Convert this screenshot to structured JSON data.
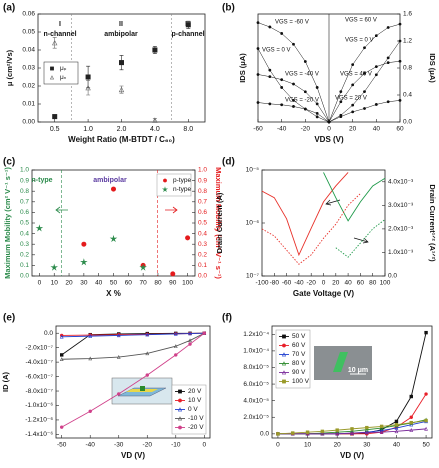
{
  "chart_data": [
    {
      "type": "scatter",
      "panel_label": "(a)",
      "xlabel": "Weight Ratio (M-BTDT / C₆₀)",
      "ylabel": "μ (cm²/Vs)",
      "categories": [
        "0.5",
        "1.0",
        "2.0",
        "4.0",
        "8.0"
      ],
      "ylim": [
        0,
        0.06
      ],
      "yticks": [
        {
          "value": 0,
          "label": "0.00"
        },
        0.01,
        0.02,
        0.03,
        0.04,
        0.05,
        0.06
      ],
      "annotations": [
        "I",
        "n-channel",
        "II",
        "ambipolar",
        "III",
        "p-channel"
      ],
      "legend": "left",
      "series": [
        {
          "name": "μₚ",
          "color": "#222222",
          "marker": "square",
          "values": [
            0.003,
            0.025,
            0.033,
            0.04,
            0.054
          ],
          "errors": [
            0.001,
            0.006,
            0.004,
            0.002,
            0.002
          ]
        },
        {
          "name": "μₙ",
          "color": "#666666",
          "marker": "triangle",
          "values": [
            0.044,
            0.019,
            0.018,
            0.001,
            null
          ],
          "errors": [
            0.003,
            0.004,
            0.002,
            0.001,
            null
          ]
        }
      ]
    },
    {
      "type": "line",
      "panel_label": "(b)",
      "xlabel": "VDS (V)",
      "ylabel": "IDS (μA)",
      "y2label": "IDS (μA)",
      "xlim": [
        -60,
        60
      ],
      "xticks": [
        -60,
        -40,
        -20,
        0,
        20,
        40,
        60
      ],
      "ylim": [
        0,
        2.5
      ],
      "yticks": [],
      "y2lim": [
        0,
        1.6
      ],
      "y2ticks": [
        {
          "value": 0,
          "label": "0.0"
        },
        0.4,
        0.8,
        1.2,
        1.6
      ],
      "legend": "inline",
      "series": [
        {
          "name": "VGS = -60 V",
          "color": "#111111",
          "marker": "dot",
          "x": [
            -60,
            -50,
            -40,
            -30,
            -20,
            -10,
            0
          ],
          "values": [
            2.3,
            2.2,
            2.05,
            1.8,
            1.4,
            0.8,
            0
          ]
        },
        {
          "name": "VGS = 0 V",
          "color": "#111111",
          "marker": "dot",
          "x": [
            -60,
            -50,
            -40,
            -30,
            -20,
            -10,
            0
          ],
          "values": [
            1.7,
            1.2,
            0.8,
            0.5,
            0.3,
            0.12,
            0
          ]
        },
        {
          "name": "VGS = -40 V",
          "color": "#111111",
          "marker": "dot",
          "x": [
            -60,
            -50,
            -40,
            -30,
            -20,
            -10,
            0
          ],
          "values": [
            1.1,
            1.05,
            0.98,
            0.88,
            0.7,
            0.42,
            0
          ]
        },
        {
          "name": "VGS = -20 V",
          "color": "#111111",
          "marker": "dot",
          "x": [
            -60,
            -50,
            -40,
            -30,
            -20,
            -10,
            0
          ],
          "values": [
            0.45,
            0.42,
            0.4,
            0.36,
            0.3,
            0.2,
            0
          ]
        },
        {
          "name": "VGS = 60 V",
          "color": "#111111",
          "marker": "dot",
          "axis": "y2",
          "x": [
            0,
            10,
            20,
            30,
            40,
            50,
            60
          ],
          "values": [
            0,
            0.45,
            0.85,
            1.1,
            1.28,
            1.4,
            1.45
          ]
        },
        {
          "name": "VGS = 0 V",
          "color": "#111111",
          "marker": "dot",
          "axis": "y2",
          "x": [
            0,
            10,
            20,
            30,
            40,
            50,
            60
          ],
          "values": [
            0,
            0.1,
            0.25,
            0.45,
            0.7,
            0.95,
            1.2
          ]
        },
        {
          "name": "VGS = 40 V",
          "color": "#111111",
          "marker": "dot",
          "axis": "y2",
          "x": [
            0,
            10,
            20,
            30,
            40,
            50,
            60
          ],
          "values": [
            0,
            0.3,
            0.55,
            0.72,
            0.82,
            0.88,
            0.9
          ]
        },
        {
          "name": "VGS = 20 V",
          "color": "#111111",
          "marker": "dot",
          "axis": "y2",
          "x": [
            0,
            10,
            20,
            30,
            40,
            50,
            60
          ],
          "values": [
            0,
            0.08,
            0.15,
            0.2,
            0.26,
            0.3,
            0.32
          ]
        }
      ]
    },
    {
      "type": "scatter",
      "panel_label": "(c)",
      "xlabel": "X %",
      "ylabel": "Maximum Mobility (cm² V⁻¹ s⁻¹)",
      "y2label": "Maximum Mobility (cm² V⁻¹ s⁻¹)",
      "y_color": "#2a8a4a",
      "y2_color": "#e41a1c",
      "xlim": [
        -5,
        105
      ],
      "xticks": [
        0,
        10,
        20,
        30,
        40,
        50,
        60,
        70,
        80,
        90,
        100
      ],
      "ylim": [
        0,
        1
      ],
      "yticks": [
        {
          "value": 0,
          "label": "0.0"
        },
        0.1,
        0.2,
        0.3,
        0.4,
        0.5,
        0.6,
        0.7,
        0.8,
        0.9,
        {
          "value": 1,
          "label": "1.0"
        }
      ],
      "y2lim": [
        0,
        1
      ],
      "y2ticks": [
        {
          "value": 0,
          "label": "0.0"
        },
        0.1,
        0.2,
        0.3,
        0.4,
        0.5,
        0.6,
        0.7,
        0.8,
        0.9,
        {
          "value": 1,
          "label": "1.0"
        }
      ],
      "annotations": [
        "n-type",
        "ambipolar",
        "p-type"
      ],
      "legend": "upper right",
      "series": [
        {
          "name": "p-type",
          "color": "#e41a1c",
          "marker": "circle",
          "axis": "y2",
          "x": [
            30,
            50,
            70,
            90,
            100
          ],
          "values": [
            0.3,
            0.82,
            0.1,
            0.02,
            0.36
          ]
        },
        {
          "name": "n-type",
          "color": "#2a8a4a",
          "marker": "star",
          "x": [
            0,
            10,
            30,
            50,
            70
          ],
          "values": [
            0.45,
            0.08,
            0.13,
            0.35,
            0.08
          ]
        }
      ]
    },
    {
      "type": "line",
      "panel_label": "(d)",
      "xlabel": "Gate Voltage (V)",
      "ylabel": "Drain Current (A)",
      "y2label": "Drain Current¹ᐟ² (A¹ᐟ²)",
      "xlim": [
        -100,
        100
      ],
      "xticks": [
        -100,
        -80,
        -60,
        -40,
        -20,
        0,
        20,
        40,
        60,
        80,
        100
      ],
      "ylog": true,
      "ylim": [
        1e-07,
        1e-05
      ],
      "yticks": [
        {
          "value": 1e-07,
          "label": "10⁻⁷"
        },
        {
          "value": 1e-06,
          "label": "10⁻⁶"
        },
        {
          "value": 1e-05,
          "label": "10⁻⁵"
        }
      ],
      "y2lim": [
        0,
        0.0045
      ],
      "y2ticks": [
        {
          "value": 0,
          "label": "0.0"
        },
        {
          "value": 0.001,
          "label": "1.0x10⁻³"
        },
        {
          "value": 0.002,
          "label": "2.0x10⁻³"
        },
        {
          "value": 0.003,
          "label": "3.0x10⁻³"
        },
        {
          "value": 0.004,
          "label": "4.0x10⁻³"
        }
      ],
      "series": [
        {
          "color": "#e8312a",
          "x": [
            -100,
            -80,
            -60,
            -40,
            -20,
            0,
            20,
            40
          ],
          "values": [
            4e-06,
            3e-06,
            1.2e-06,
            2.5e-07,
            8e-07,
            2.5e-06,
            5e-06,
            9e-06
          ]
        },
        {
          "color": "#1f9a4a",
          "x": [
            0,
            20,
            40,
            60,
            80,
            100
          ],
          "values": [
            9e-06,
            3e-06,
            1.1e-06,
            2.5e-06,
            5e-06,
            7e-06
          ]
        },
        {
          "color": "#e8312a",
          "dash": true,
          "axis": "y2",
          "x": [
            -100,
            -80,
            -60,
            -40,
            -20,
            0,
            20,
            40,
            60
          ],
          "values": [
            0.002,
            0.0017,
            0.0011,
            0.0005,
            0.0009,
            0.0016,
            0.0022,
            0.003,
            0.0035
          ]
        },
        {
          "color": "#1f9a4a",
          "dash": true,
          "axis": "y2",
          "x": [
            20,
            40,
            60,
            80,
            100
          ],
          "values": [
            0.0012,
            0.0008,
            0.0014,
            0.002,
            0.0024
          ]
        }
      ]
    },
    {
      "type": "line",
      "panel_label": "(e)",
      "xlabel": "VD (V)",
      "ylabel": "ID (A)",
      "xlim": [
        -52,
        2
      ],
      "xticks": [
        -50,
        -40,
        -30,
        -20,
        -10,
        0
      ],
      "ylim": [
        -1.45e-06,
        1e-07
      ],
      "yticks": [
        {
          "value": 0,
          "label": "0.0"
        },
        {
          "value": -2e-07,
          "label": "-2.0x10⁻⁷"
        },
        {
          "value": -4e-07,
          "label": "-4.0x10⁻⁷"
        },
        {
          "value": -6e-07,
          "label": "-6.0x10⁻⁷"
        },
        {
          "value": -8e-07,
          "label": "-8.0x10⁻⁷"
        },
        {
          "value": -1e-06,
          "label": "-1.0x10⁻⁶"
        },
        {
          "value": -1.2e-06,
          "label": "-1.2x10⁻⁶"
        },
        {
          "value": -1.4e-06,
          "label": "-1.4x10⁻⁶"
        }
      ],
      "x": [
        -50,
        -40,
        -30,
        -20,
        -10,
        -5,
        0
      ],
      "legend": "lower right",
      "series": [
        {
          "name": "20 V",
          "color": "#111111",
          "marker": "square",
          "values": [
            -3e-07,
            -2e-08,
            -1e-08,
            -5e-09,
            -2e-09,
            -1e-09,
            0
          ]
        },
        {
          "name": "10 V",
          "color": "#e8202a",
          "marker": "circle",
          "values": [
            -3e-08,
            -2.5e-08,
            -2e-08,
            -1.5e-08,
            -8e-09,
            -4e-09,
            0
          ]
        },
        {
          "name": "0 V",
          "color": "#1f3fd0",
          "marker": "triangle",
          "values": [
            -5e-08,
            -4e-08,
            -3e-08,
            -2e-08,
            -1e-08,
            -5e-09,
            0
          ]
        },
        {
          "name": "-10 V",
          "color": "#555555",
          "marker": "triangle",
          "values": [
            -3.6e-07,
            -3.5e-07,
            -3.3e-07,
            -2.8e-07,
            -1.8e-07,
            -1e-07,
            0
          ]
        },
        {
          "name": "-20 V",
          "color": "#d0408a",
          "marker": "circle",
          "values": [
            -1.3e-06,
            -1.08e-06,
            -8.4e-07,
            -5.8e-07,
            -3e-07,
            -1.5e-07,
            0
          ]
        }
      ]
    },
    {
      "type": "line",
      "panel_label": "(f)",
      "xlabel": "VD (V)",
      "xlim": [
        -2,
        52
      ],
      "xticks": [
        0,
        10,
        20,
        30,
        40,
        50
      ],
      "ylim": [
        -5e-06,
        0.00013
      ],
      "yticks": [
        {
          "value": 0,
          "label": "0.0"
        },
        {
          "value": 2e-05,
          "label": "2.0x10⁻⁵"
        },
        {
          "value": 4e-05,
          "label": "4.0x10⁻⁵"
        },
        {
          "value": 6e-05,
          "label": "6.0x10⁻⁵"
        },
        {
          "value": 8e-05,
          "label": "8.0x10⁻⁵"
        },
        {
          "value": 0.0001,
          "label": "1.0x10⁻⁴"
        },
        {
          "value": 0.00012,
          "label": "1.2x10⁻⁴"
        }
      ],
      "x": [
        0,
        5,
        10,
        15,
        20,
        25,
        30,
        35,
        40,
        45,
        50
      ],
      "legend": "upper left",
      "annotations": [
        "10 μm"
      ],
      "series": [
        {
          "name": "50 V",
          "color": "#111111",
          "marker": "square",
          "values": [
            0,
            0,
            0,
            0,
            0,
            0,
            1e-06,
            5e-06,
            1.5e-05,
            4.5e-05,
            0.000122
          ]
        },
        {
          "name": "60 V",
          "color": "#e8202a",
          "marker": "circle",
          "values": [
            0,
            0,
            0,
            0,
            0,
            0,
            0,
            2e-06,
            8e-06,
            2e-05,
            4.8e-05
          ]
        },
        {
          "name": "70 V",
          "color": "#1f3fd0",
          "marker": "triangle",
          "values": [
            0,
            0,
            0,
            0,
            0,
            1e-06,
            2e-06,
            4e-06,
            7e-06,
            1.1e-05,
            1.5e-05
          ]
        },
        {
          "name": "80 V",
          "color": "#2a8a2a",
          "marker": "triangle",
          "values": [
            0,
            0,
            0,
            1e-06,
            2e-06,
            3e-06,
            5e-06,
            7e-06,
            1e-05,
            1.3e-05,
            1.7e-05
          ]
        },
        {
          "name": "90 V",
          "color": "#7a2a9a",
          "marker": "triangle",
          "values": [
            0,
            0,
            0,
            0,
            0,
            1e-06,
            1.5e-06,
            2e-06,
            3e-06,
            4.5e-06,
            6e-06
          ]
        },
        {
          "name": "100 V",
          "color": "#9a9a2a",
          "marker": "square",
          "values": [
            0,
            1e-06,
            2e-06,
            3e-06,
            4.5e-06,
            6e-06,
            7.5e-06,
            9e-06,
            1.1e-05,
            1.35e-05,
            1.6e-05
          ]
        }
      ]
    }
  ]
}
